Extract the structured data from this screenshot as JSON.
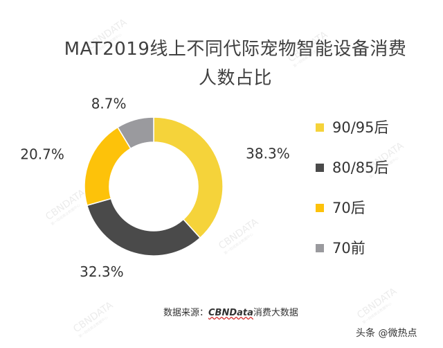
{
  "title_line1": "MAT2019线上不同代际宠物智能设备消费",
  "title_line2": "人数占比",
  "chart_data": {
    "type": "pie",
    "title": "MAT2019线上不同代际宠物智能设备消费人数占比",
    "donut": true,
    "legend_position": "right",
    "categories": [
      "90/95后",
      "80/85后",
      "70后",
      "70前"
    ],
    "values": [
      38.3,
      32.3,
      20.7,
      8.7
    ],
    "labels": [
      "38.3%",
      "32.3%",
      "20.7%",
      "8.7%"
    ],
    "colors": [
      "#f5d33a",
      "#4a4a4a",
      "#fdc20a",
      "#9a9a9e"
    ]
  },
  "source": {
    "prefix": "数据来源：",
    "brand": "CBNData",
    "suffix": "消费大数据"
  },
  "watermark": {
    "text": "CBNDATA",
    "subtext": "第一财经商业数据中心"
  },
  "footer_tag": "头条 @微热点"
}
